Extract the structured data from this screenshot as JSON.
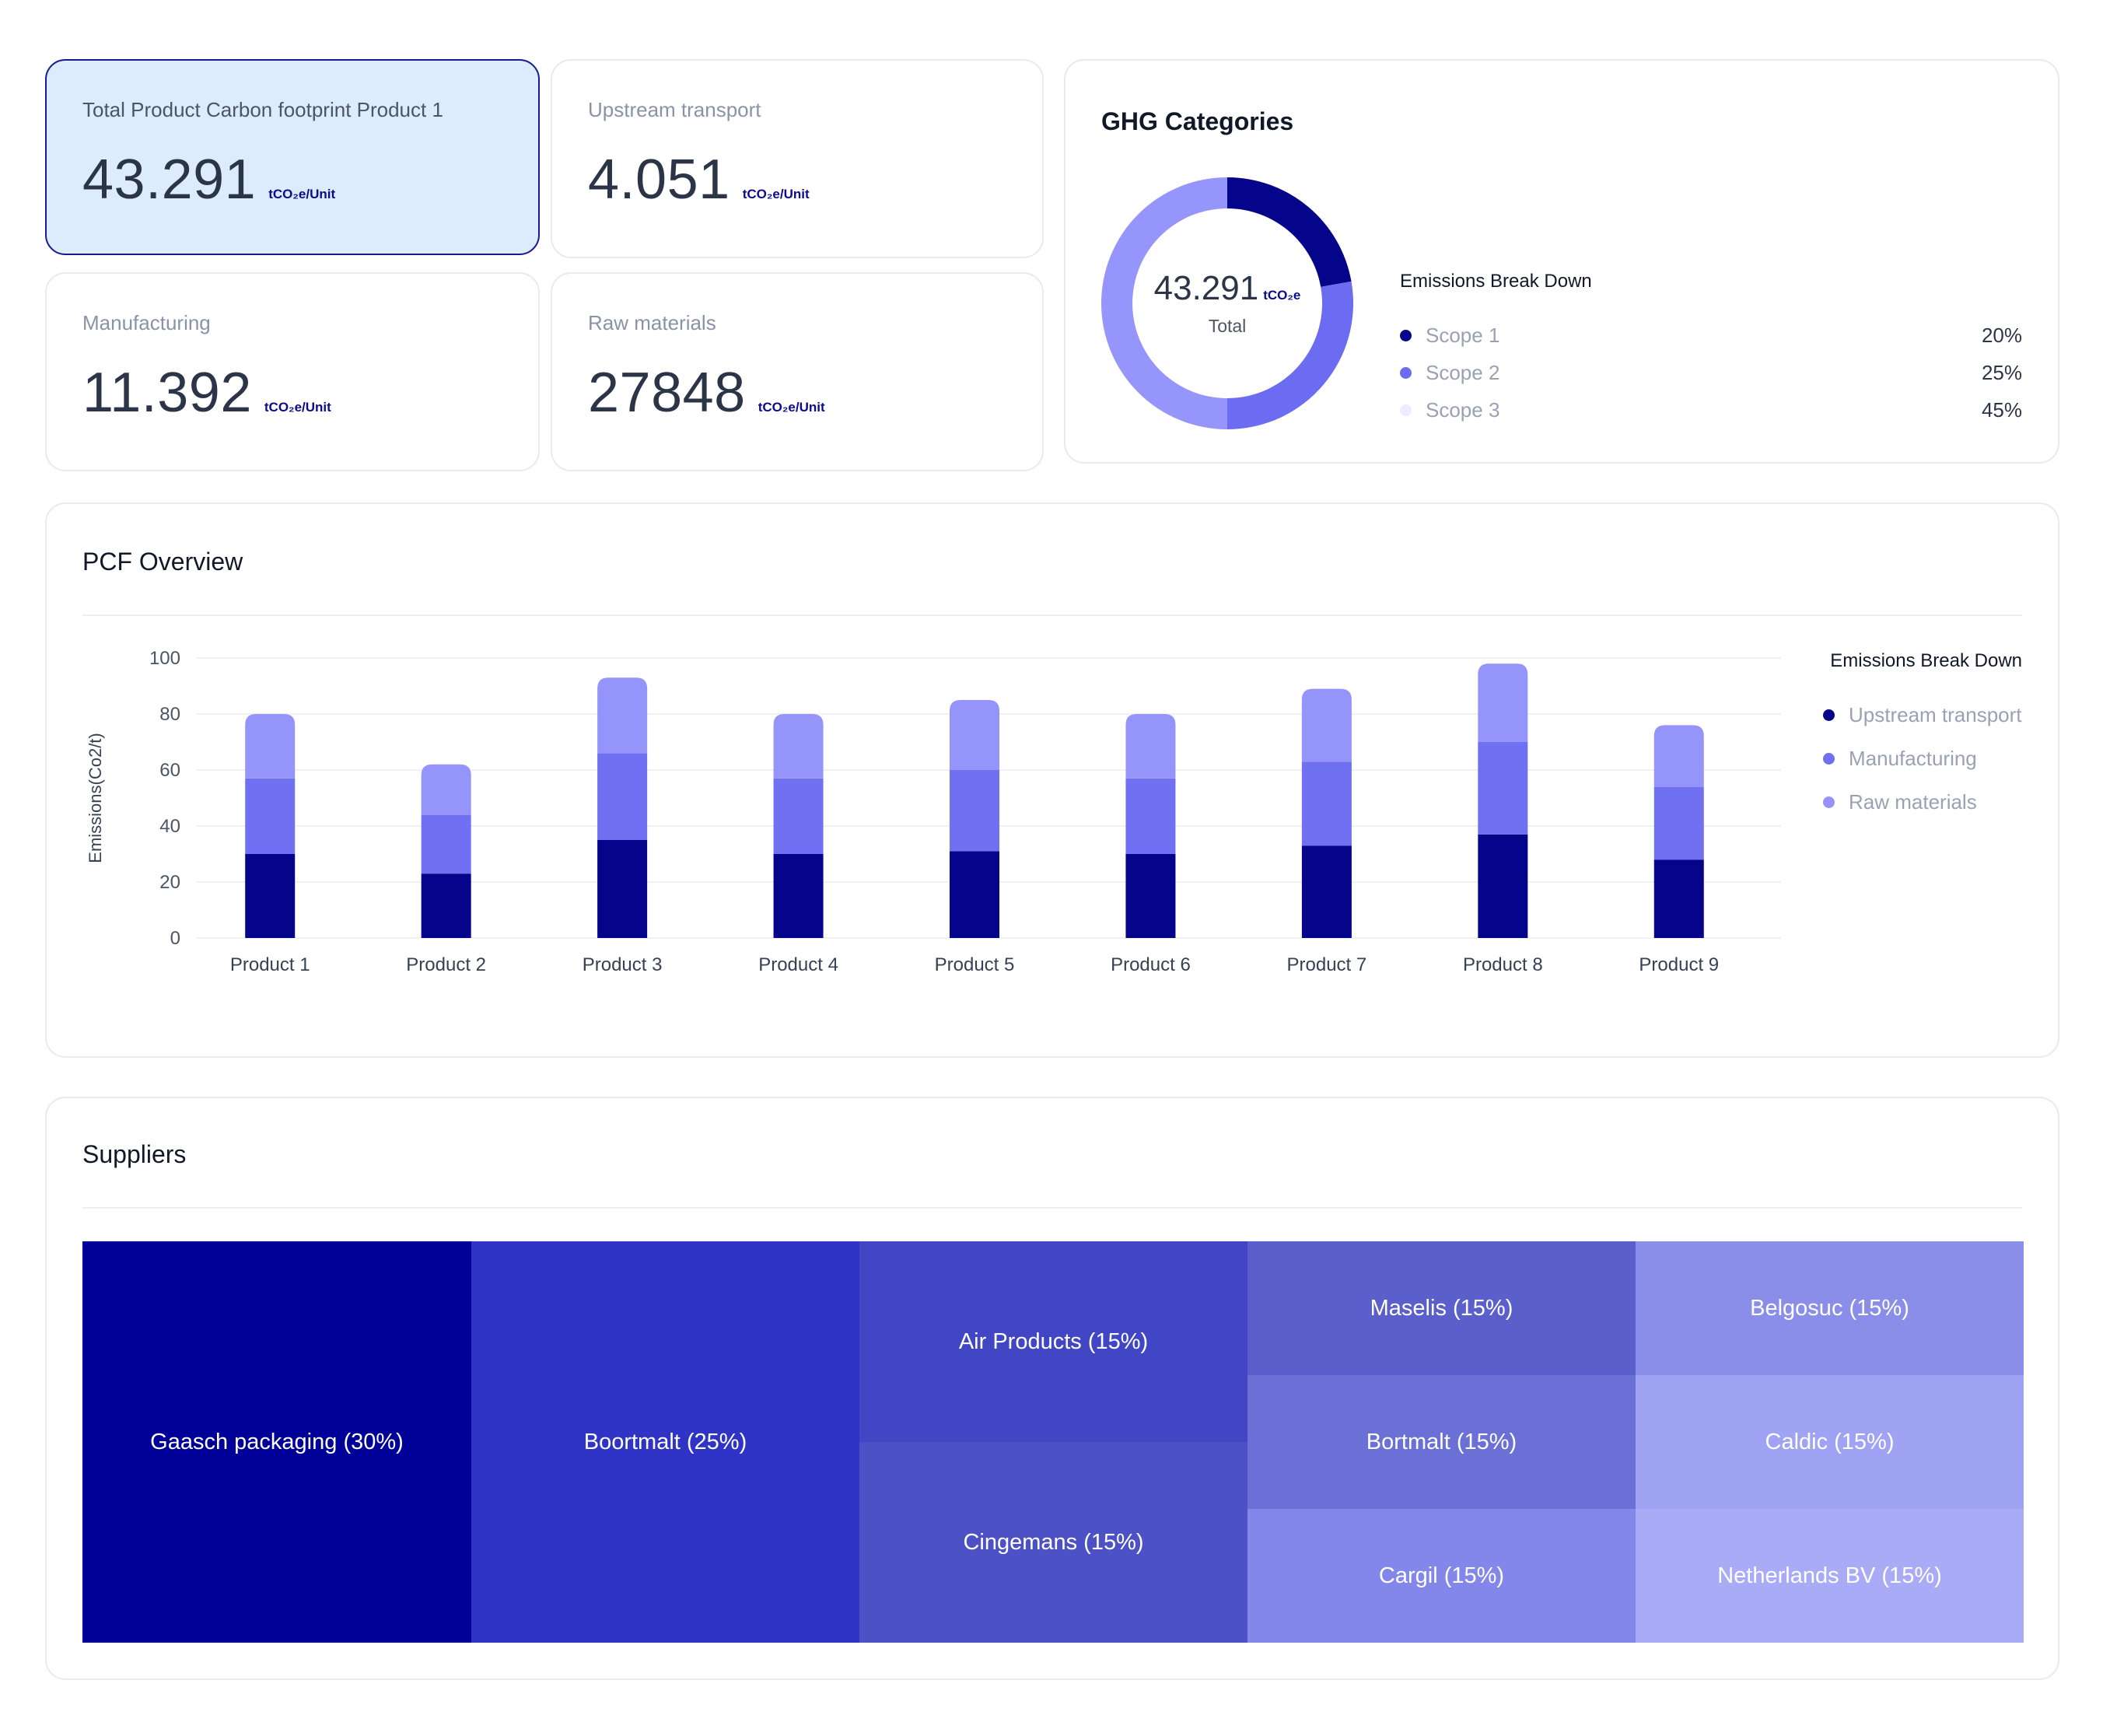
{
  "kpis": [
    {
      "label": "Total Product Carbon footprint Product 1",
      "value": "43.291",
      "unit": "tCO₂e/Unit"
    },
    {
      "label": "Upstream transport",
      "value": "4.051",
      "unit": "tCO₂e/Unit"
    },
    {
      "label": "Manufacturing",
      "value": "11.392",
      "unit": "tCO₂e/Unit"
    },
    {
      "label": "Raw materials",
      "value": "27848",
      "unit": "tCO₂e/Unit"
    }
  ],
  "ghg": {
    "title": "GHG Categories",
    "center_value": "43.291",
    "center_unit": "tCO₂e",
    "center_label": "Total",
    "breakdown_title": "Emissions Break Down",
    "items": [
      {
        "name": "Scope 1",
        "pct": "20%",
        "share": 20,
        "color": "#05058c"
      },
      {
        "name": "Scope 2",
        "pct": "25%",
        "share": 25,
        "color": "#6c6cf2"
      },
      {
        "name": "Scope 3",
        "pct": "45%",
        "share": 45,
        "color": "#9595fb"
      }
    ],
    "scope3_dot_color": "#ececfb"
  },
  "pcf": {
    "title": "PCF Overview",
    "legend_title": "Emissions Break Down"
  },
  "chart_data": {
    "type": "bar",
    "stacked": true,
    "categories": [
      "Product 1",
      "Product 2",
      "Product 3",
      "Product 4",
      "Product 5",
      "Product 6",
      "Product 7",
      "Product 8",
      "Product 9"
    ],
    "series": [
      {
        "name": "Upstream transport",
        "color": "#05058c",
        "values": [
          30,
          23,
          35,
          30,
          31,
          30,
          33,
          37,
          28
        ]
      },
      {
        "name": "Manufacturing",
        "color": "#7070f2",
        "values": [
          27,
          21,
          31,
          27,
          29,
          27,
          30,
          33,
          26
        ]
      },
      {
        "name": "Raw materials",
        "color": "#9494fa",
        "values": [
          23,
          18,
          27,
          23,
          25,
          23,
          26,
          28,
          22
        ]
      }
    ],
    "ylabel": "Emissions(Co2/t)",
    "ylim": [
      0,
      100
    ],
    "yticks": [
      0,
      20,
      40,
      60,
      80,
      100
    ],
    "grid": true,
    "legend": "right"
  },
  "suppliers": {
    "title": "Suppliers",
    "cells": [
      {
        "label": "Gaasch packaging (30%)",
        "color": "#000099"
      },
      {
        "label": "Boortmalt (25%)",
        "color": "#3034c6"
      },
      {
        "label": "Air Products (15%)",
        "color": "#4146c5"
      },
      {
        "label": "Cingemans (15%)",
        "color": "#4c52c6"
      },
      {
        "label": "Maselis (15%)",
        "color": "#5a5fcb"
      },
      {
        "label": "Bortmalt (15%)",
        "color": "#6b70d6"
      },
      {
        "label": "Cargil (15%)",
        "color": "#8387ea"
      },
      {
        "label": "Belgosuc (15%)",
        "color": "#8a8ee9"
      },
      {
        "label": "Caldic (15%)",
        "color": "#a0a3f3"
      },
      {
        "label": "Netherlands BV (15%)",
        "color": "#a9abf6"
      }
    ]
  }
}
